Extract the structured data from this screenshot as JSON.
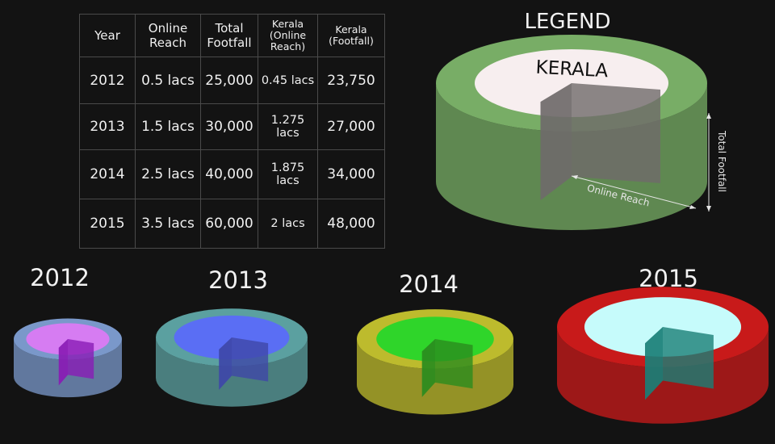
{
  "table": {
    "headers": {
      "year": "Year",
      "online_reach": [
        "Online",
        "Reach"
      ],
      "total_footfall": [
        "Total",
        "Footfall"
      ],
      "kerala_online": [
        "Kerala",
        "(Online",
        "Reach)"
      ],
      "kerala_footfall": [
        "Kerala",
        "(Footfall)"
      ]
    },
    "rows": [
      {
        "year": "2012",
        "online_reach": "0.5 lacs",
        "total_footfall": "25,000",
        "kerala_online": "0.45 lacs",
        "kerala_footfall": "23,750"
      },
      {
        "year": "2013",
        "online_reach": "1.5 lacs",
        "total_footfall": "30,000",
        "kerala_online": "1.275 lacs",
        "kerala_footfall": "27,000"
      },
      {
        "year": "2014",
        "online_reach": "2.5 lacs",
        "total_footfall": "40,000",
        "kerala_online": "1.875 lacs",
        "kerala_footfall": "34,000"
      },
      {
        "year": "2015",
        "online_reach": "3.5 lacs",
        "total_footfall": "60,000",
        "kerala_online": "2 lacs",
        "kerala_footfall": "48,000"
      }
    ]
  },
  "legend": {
    "title": "LEGEND",
    "inner_label": "KERALA",
    "x_axis_label": "Online Reach",
    "y_axis_label": "Total Footfall",
    "outer_color": "#7db56a",
    "inner_color": "#f7eeef"
  },
  "chart_data": {
    "type": "pie",
    "categories": [
      "2012",
      "2013",
      "2014",
      "2015"
    ],
    "series": [
      {
        "name": "Online Reach",
        "values": [
          0.5,
          1.5,
          2.5,
          3.5
        ]
      },
      {
        "name": "Total Footfall",
        "values": [
          25000,
          30000,
          40000,
          60000
        ]
      },
      {
        "name": "Kerala (Online Reach)",
        "values": [
          0.45,
          1.275,
          1.875,
          2
        ]
      },
      {
        "name": "Kerala (Footfall)",
        "values": [
          23750,
          27000,
          34000,
          48000
        ]
      }
    ],
    "colors": {
      "2012": {
        "outer": "#7f9fd4",
        "inner": "#d67cf2",
        "cut": "#8a1bb5"
      },
      "2013": {
        "outer": "#5fa8a8",
        "inner": "#5a6ef4",
        "cut": "#3e47a8"
      },
      "2014": {
        "outer": "#c6c42e",
        "inner": "#2fd52a",
        "cut": "#2a8c1e"
      },
      "2015": {
        "outer": "#d21a1a",
        "inner": "#c6fbfb",
        "cut": "#1a7f77"
      }
    }
  }
}
